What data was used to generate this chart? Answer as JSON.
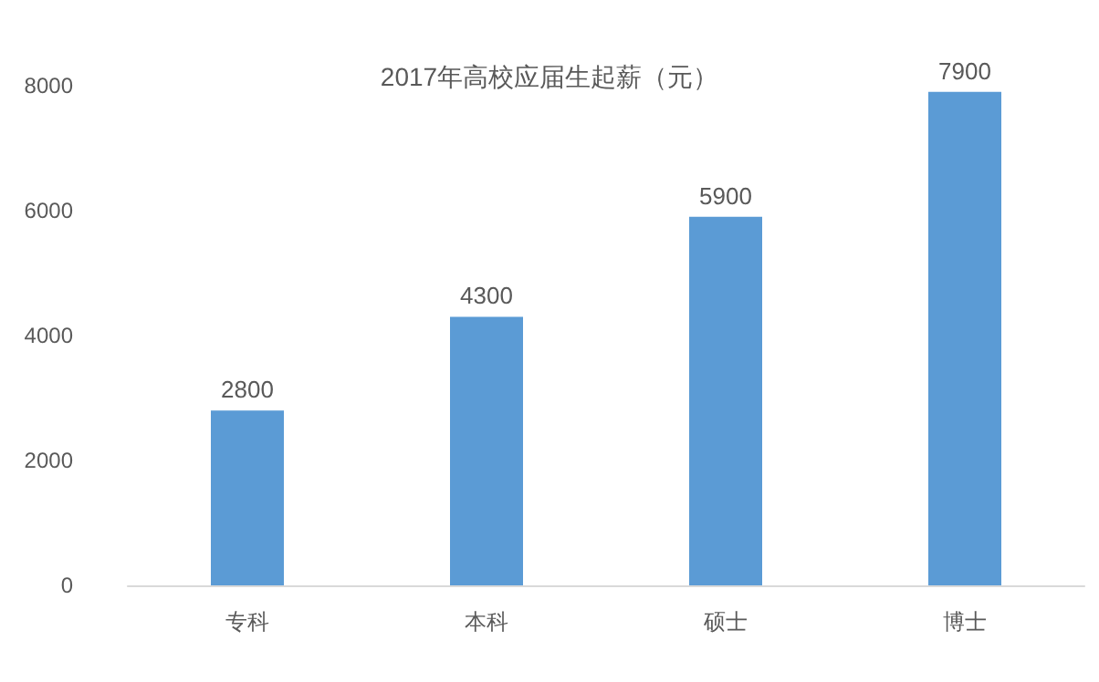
{
  "chart_data": {
    "type": "bar",
    "title": "2017年高校应届生起薪（元）",
    "categories": [
      "专科",
      "本科",
      "硕士",
      "博士"
    ],
    "values": [
      2800,
      4300,
      5900,
      7900
    ],
    "color": "#5b9bd5",
    "ylim": [
      0,
      8000
    ],
    "yticks": [
      0,
      2000,
      4000,
      6000,
      8000
    ],
    "grid": false,
    "data_labels": true
  }
}
